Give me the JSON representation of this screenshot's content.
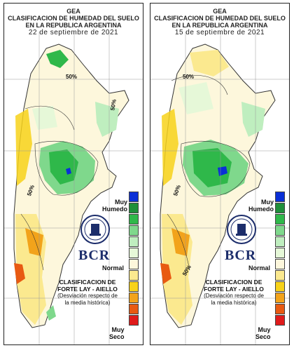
{
  "panels": [
    {
      "org": "GEA",
      "title_line1": "CLASIFICACION DE HUMEDAD DEL SUELO",
      "title_line2": "EN LA REPUBLICA ARGENTINA",
      "date": "22 de septiembre de 2021"
    },
    {
      "org": "GEA",
      "title_line1": "CLASIFICACION DE HUMEDAD DEL SUELO",
      "title_line2": "EN LA REPUBLICA ARGENTINA",
      "date": "15 de septiembre de 2021"
    }
  ],
  "legend": {
    "top_label_1": "Muy",
    "top_label_2": "Humedo",
    "mid_label": "Normal",
    "bottom_label_1": "Muy",
    "bottom_label_2": "Seco",
    "classes": [
      "#0a2fd6",
      "#1f8f3a",
      "#2fb84a",
      "#7fd88c",
      "#bfeebf",
      "#e6f8d8",
      "#fdf7dc",
      "#fbe98f",
      "#f7d21a",
      "#f2a31b",
      "#e85a12",
      "#e01b1b"
    ]
  },
  "logo": {
    "text": "BCR"
  },
  "classification": {
    "line1": "CLASIFICACION DE",
    "line2": "FORTE LAY - AIELLO",
    "line3": "(Desviación respecto de",
    "line4": "la media histórica)"
  },
  "isolines": {
    "label": "50%"
  }
}
